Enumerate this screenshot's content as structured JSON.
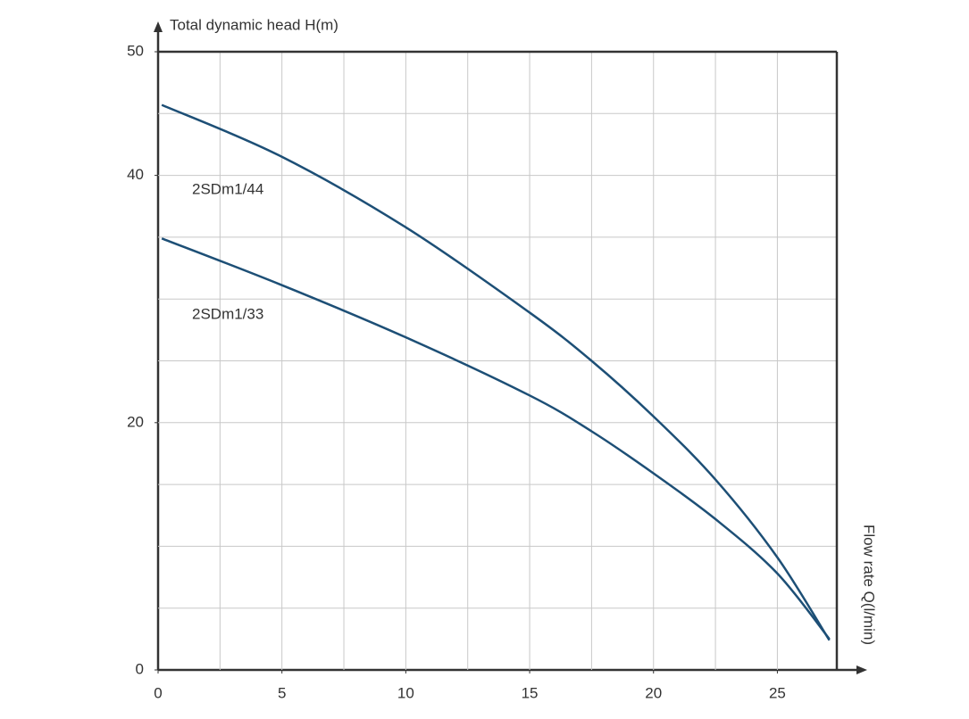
{
  "chart_data": {
    "type": "line",
    "y_label": "Total dynamic head H(m)",
    "x_label": "Flow rate Q(l/min)",
    "xlim": [
      0,
      27.4
    ],
    "ylim": [
      0,
      50
    ],
    "xticks": [
      0,
      5,
      10,
      15,
      20,
      25
    ],
    "yticks": [
      0,
      20,
      40,
      50
    ],
    "xgrid": [
      2.5,
      5,
      7.5,
      10,
      12.5,
      15,
      17.5,
      20,
      22.5,
      25
    ],
    "ygrid": [
      5,
      10,
      15,
      20,
      25,
      30,
      35,
      40,
      45
    ],
    "grid": true,
    "x": [
      0.15,
      4.9,
      10,
      15,
      17.5,
      20,
      22.5,
      25,
      27.1
    ],
    "series": [
      {
        "name": "2SDm1/44",
        "color": "#1d4f76",
        "values": [
          45.7,
          41.6,
          35.8,
          28.9,
          25.0,
          20.5,
          15.4,
          9.1,
          2.4
        ]
      },
      {
        "name": "2SDm1/33",
        "color": "#1d4f76",
        "values": [
          34.9,
          31.2,
          26.9,
          22.2,
          19.3,
          15.9,
          12.2,
          7.8,
          2.5
        ]
      }
    ]
  }
}
